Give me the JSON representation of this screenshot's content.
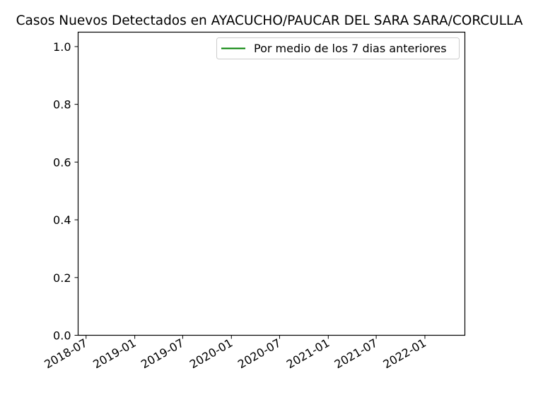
{
  "chart_data": {
    "type": "line",
    "title": "Casos Nuevos Detectados en AYACUCHO/PAUCAR DEL SARA SARA/CORCULLA",
    "xlabel": "",
    "ylabel": "",
    "x_axis_type": "date",
    "x_ticks": [
      "2018-07",
      "2019-01",
      "2019-07",
      "2020-01",
      "2020-07",
      "2021-01",
      "2021-07",
      "2022-01"
    ],
    "xlim": [
      "2018-06-01",
      "2022-06-01"
    ],
    "ylim": [
      0,
      1.05
    ],
    "y_ticks": [
      "0.0",
      "0.2",
      "0.4",
      "0.6",
      "0.8",
      "1.0"
    ],
    "grid": false,
    "legend_position": "top-right",
    "series": [
      {
        "name": "Por medio de los 7 dias anteriores",
        "color": "#008000",
        "x": [],
        "y": []
      }
    ]
  }
}
